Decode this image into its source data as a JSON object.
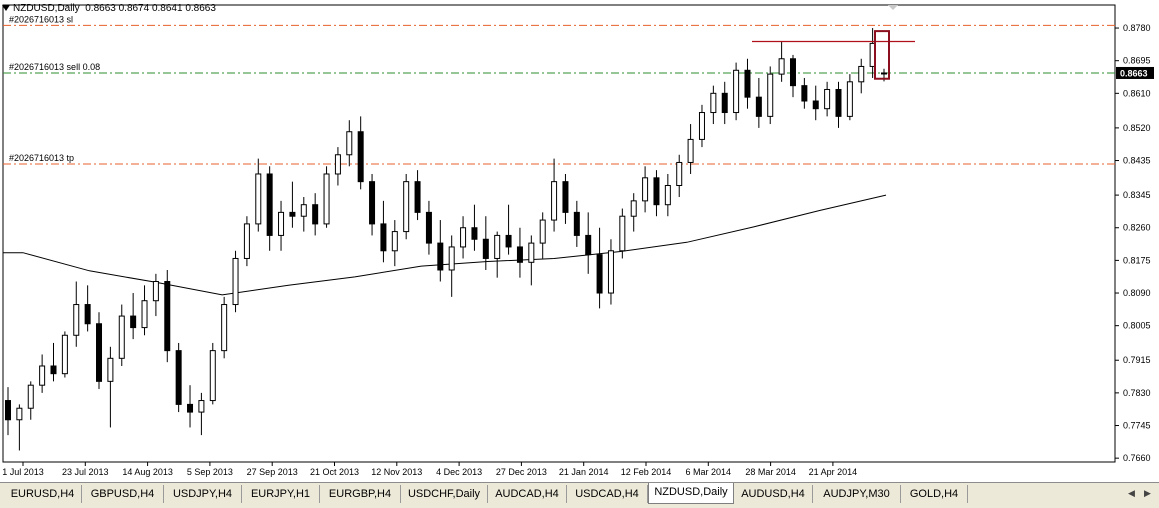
{
  "window": {
    "title": "NZDUSD,Daily",
    "ohlc": "0.8663 0.8674 0.8641 0.8663"
  },
  "chart_data": {
    "type": "candlestick",
    "symbol": "NZDUSD",
    "timeframe": "Daily",
    "ylim": [
      0.765,
      0.884
    ],
    "y_ticks": [
      "0.8780",
      "0.8695",
      "0.8610",
      "0.8520",
      "0.8435",
      "0.8345",
      "0.8260",
      "0.8175",
      "0.8090",
      "0.8005",
      "0.7915",
      "0.7830",
      "0.7745",
      "0.7660"
    ],
    "y_tick_values": [
      0.878,
      0.8695,
      0.861,
      0.852,
      0.8435,
      0.8345,
      0.826,
      0.8175,
      0.809,
      0.8005,
      0.7915,
      0.783,
      0.7745,
      0.766
    ],
    "x_ticks": [
      "1 Jul 2013",
      "23 Jul 2013",
      "14 Aug 2013",
      "5 Sep 2013",
      "27 Sep 2013",
      "21 Oct 2013",
      "12 Nov 2013",
      "4 Dec 2013",
      "27 Dec 2013",
      "21 Jan 2014",
      "12 Feb 2014",
      "6 Mar 2014",
      "28 Mar 2014",
      "21 Apr 2014"
    ],
    "current_price": "0.8663",
    "current_price_value": 0.8663,
    "order_lines": [
      {
        "label": "#2026716013 sl",
        "price": 0.8787,
        "color": "#e8602c"
      },
      {
        "label": "#2026716013 sell 0.08",
        "price": 0.8663,
        "color": "#2e8b2e"
      },
      {
        "label": "#2026716013 tp",
        "price": 0.8426,
        "color": "#e8602c"
      }
    ],
    "resistance_line_price": 0.8745,
    "highlight_box_range": [
      0.8648,
      0.8772
    ],
    "moving_average": [
      {
        "x": "1 Jul 2013",
        "y": 0.8195
      },
      {
        "x": "23 Jul 2013",
        "y": 0.8148
      },
      {
        "x": "14 Aug 2013",
        "y": 0.8118
      },
      {
        "x": "5 Sep 2013",
        "y": 0.8085
      },
      {
        "x": "27 Sep 2013",
        "y": 0.811
      },
      {
        "x": "21 Oct 2013",
        "y": 0.8132
      },
      {
        "x": "12 Nov 2013",
        "y": 0.816
      },
      {
        "x": "4 Dec 2013",
        "y": 0.8172
      },
      {
        "x": "27 Dec 2013",
        "y": 0.818
      },
      {
        "x": "21 Jan 2014",
        "y": 0.8198
      },
      {
        "x": "12 Feb 2014",
        "y": 0.8222
      },
      {
        "x": "6 Mar 2014",
        "y": 0.8262
      },
      {
        "x": "28 Mar 2014",
        "y": 0.8305
      },
      {
        "x": "21 Apr 2014",
        "y": 0.8345
      }
    ],
    "candles": [
      {
        "o": 0.781,
        "h": 0.7845,
        "l": 0.772,
        "c": 0.776
      },
      {
        "o": 0.776,
        "h": 0.78,
        "l": 0.768,
        "c": 0.779
      },
      {
        "o": 0.779,
        "h": 0.786,
        "l": 0.776,
        "c": 0.785
      },
      {
        "o": 0.785,
        "h": 0.793,
        "l": 0.783,
        "c": 0.79
      },
      {
        "o": 0.79,
        "h": 0.796,
        "l": 0.786,
        "c": 0.788
      },
      {
        "o": 0.788,
        "h": 0.799,
        "l": 0.787,
        "c": 0.798
      },
      {
        "o": 0.798,
        "h": 0.812,
        "l": 0.795,
        "c": 0.806
      },
      {
        "o": 0.806,
        "h": 0.811,
        "l": 0.799,
        "c": 0.801
      },
      {
        "o": 0.801,
        "h": 0.804,
        "l": 0.784,
        "c": 0.786
      },
      {
        "o": 0.786,
        "h": 0.795,
        "l": 0.774,
        "c": 0.792
      },
      {
        "o": 0.792,
        "h": 0.806,
        "l": 0.79,
        "c": 0.803
      },
      {
        "o": 0.803,
        "h": 0.809,
        "l": 0.797,
        "c": 0.8
      },
      {
        "o": 0.8,
        "h": 0.811,
        "l": 0.798,
        "c": 0.807
      },
      {
        "o": 0.807,
        "h": 0.814,
        "l": 0.803,
        "c": 0.812
      },
      {
        "o": 0.812,
        "h": 0.815,
        "l": 0.791,
        "c": 0.794
      },
      {
        "o": 0.794,
        "h": 0.796,
        "l": 0.778,
        "c": 0.78
      },
      {
        "o": 0.78,
        "h": 0.785,
        "l": 0.774,
        "c": 0.778
      },
      {
        "o": 0.778,
        "h": 0.783,
        "l": 0.772,
        "c": 0.781
      },
      {
        "o": 0.781,
        "h": 0.796,
        "l": 0.78,
        "c": 0.794
      },
      {
        "o": 0.794,
        "h": 0.808,
        "l": 0.792,
        "c": 0.806
      },
      {
        "o": 0.806,
        "h": 0.82,
        "l": 0.804,
        "c": 0.818
      },
      {
        "o": 0.818,
        "h": 0.829,
        "l": 0.816,
        "c": 0.827
      },
      {
        "o": 0.827,
        "h": 0.844,
        "l": 0.825,
        "c": 0.84
      },
      {
        "o": 0.84,
        "h": 0.842,
        "l": 0.82,
        "c": 0.824
      },
      {
        "o": 0.824,
        "h": 0.833,
        "l": 0.82,
        "c": 0.83
      },
      {
        "o": 0.83,
        "h": 0.838,
        "l": 0.826,
        "c": 0.829
      },
      {
        "o": 0.829,
        "h": 0.834,
        "l": 0.825,
        "c": 0.832
      },
      {
        "o": 0.832,
        "h": 0.835,
        "l": 0.824,
        "c": 0.827
      },
      {
        "o": 0.827,
        "h": 0.842,
        "l": 0.826,
        "c": 0.84
      },
      {
        "o": 0.84,
        "h": 0.847,
        "l": 0.837,
        "c": 0.845
      },
      {
        "o": 0.845,
        "h": 0.854,
        "l": 0.842,
        "c": 0.851
      },
      {
        "o": 0.851,
        "h": 0.855,
        "l": 0.836,
        "c": 0.838
      },
      {
        "o": 0.838,
        "h": 0.84,
        "l": 0.824,
        "c": 0.827
      },
      {
        "o": 0.827,
        "h": 0.833,
        "l": 0.817,
        "c": 0.82
      },
      {
        "o": 0.82,
        "h": 0.828,
        "l": 0.816,
        "c": 0.825
      },
      {
        "o": 0.825,
        "h": 0.84,
        "l": 0.823,
        "c": 0.838
      },
      {
        "o": 0.838,
        "h": 0.841,
        "l": 0.828,
        "c": 0.83
      },
      {
        "o": 0.83,
        "h": 0.833,
        "l": 0.819,
        "c": 0.822
      },
      {
        "o": 0.822,
        "h": 0.828,
        "l": 0.812,
        "c": 0.815
      },
      {
        "o": 0.815,
        "h": 0.824,
        "l": 0.808,
        "c": 0.821
      },
      {
        "o": 0.821,
        "h": 0.829,
        "l": 0.818,
        "c": 0.826
      },
      {
        "o": 0.826,
        "h": 0.832,
        "l": 0.82,
        "c": 0.823
      },
      {
        "o": 0.823,
        "h": 0.829,
        "l": 0.815,
        "c": 0.818
      },
      {
        "o": 0.818,
        "h": 0.825,
        "l": 0.813,
        "c": 0.824
      },
      {
        "o": 0.824,
        "h": 0.832,
        "l": 0.819,
        "c": 0.821
      },
      {
        "o": 0.821,
        "h": 0.826,
        "l": 0.813,
        "c": 0.817
      },
      {
        "o": 0.817,
        "h": 0.824,
        "l": 0.811,
        "c": 0.822
      },
      {
        "o": 0.822,
        "h": 0.83,
        "l": 0.818,
        "c": 0.828
      },
      {
        "o": 0.828,
        "h": 0.844,
        "l": 0.825,
        "c": 0.838
      },
      {
        "o": 0.838,
        "h": 0.84,
        "l": 0.827,
        "c": 0.83
      },
      {
        "o": 0.83,
        "h": 0.833,
        "l": 0.821,
        "c": 0.824
      },
      {
        "o": 0.824,
        "h": 0.83,
        "l": 0.814,
        "c": 0.819
      },
      {
        "o": 0.819,
        "h": 0.826,
        "l": 0.805,
        "c": 0.809
      },
      {
        "o": 0.809,
        "h": 0.823,
        "l": 0.806,
        "c": 0.82
      },
      {
        "o": 0.82,
        "h": 0.831,
        "l": 0.818,
        "c": 0.829
      },
      {
        "o": 0.829,
        "h": 0.835,
        "l": 0.825,
        "c": 0.833
      },
      {
        "o": 0.833,
        "h": 0.842,
        "l": 0.83,
        "c": 0.839
      },
      {
        "o": 0.839,
        "h": 0.841,
        "l": 0.829,
        "c": 0.832
      },
      {
        "o": 0.832,
        "h": 0.84,
        "l": 0.829,
        "c": 0.837
      },
      {
        "o": 0.837,
        "h": 0.845,
        "l": 0.834,
        "c": 0.843
      },
      {
        "o": 0.843,
        "h": 0.853,
        "l": 0.84,
        "c": 0.849
      },
      {
        "o": 0.849,
        "h": 0.858,
        "l": 0.847,
        "c": 0.856
      },
      {
        "o": 0.856,
        "h": 0.863,
        "l": 0.853,
        "c": 0.861
      },
      {
        "o": 0.861,
        "h": 0.864,
        "l": 0.853,
        "c": 0.856
      },
      {
        "o": 0.856,
        "h": 0.869,
        "l": 0.854,
        "c": 0.867
      },
      {
        "o": 0.867,
        "h": 0.87,
        "l": 0.857,
        "c": 0.86
      },
      {
        "o": 0.86,
        "h": 0.865,
        "l": 0.852,
        "c": 0.855
      },
      {
        "o": 0.855,
        "h": 0.868,
        "l": 0.853,
        "c": 0.866
      },
      {
        "o": 0.866,
        "h": 0.8745,
        "l": 0.864,
        "c": 0.87
      },
      {
        "o": 0.87,
        "h": 0.871,
        "l": 0.86,
        "c": 0.863
      },
      {
        "o": 0.863,
        "h": 0.865,
        "l": 0.857,
        "c": 0.859
      },
      {
        "o": 0.859,
        "h": 0.863,
        "l": 0.854,
        "c": 0.857
      },
      {
        "o": 0.857,
        "h": 0.864,
        "l": 0.855,
        "c": 0.862
      },
      {
        "o": 0.862,
        "h": 0.864,
        "l": 0.852,
        "c": 0.855
      },
      {
        "o": 0.855,
        "h": 0.866,
        "l": 0.854,
        "c": 0.864
      },
      {
        "o": 0.864,
        "h": 0.87,
        "l": 0.861,
        "c": 0.868
      },
      {
        "o": 0.868,
        "h": 0.878,
        "l": 0.865,
        "c": 0.874
      },
      {
        "o": 0.8663,
        "h": 0.8674,
        "l": 0.8641,
        "c": 0.8663
      }
    ]
  },
  "tabs": [
    {
      "label": "EURUSD,H4"
    },
    {
      "label": "GBPUSD,H4"
    },
    {
      "label": "USDJPY,H4"
    },
    {
      "label": "EURJPY,H1"
    },
    {
      "label": "EURGBP,H4"
    },
    {
      "label": "USDCHF,Daily"
    },
    {
      "label": "AUDCAD,H4"
    },
    {
      "label": "USDCAD,H4"
    },
    {
      "label": "NZDUSD,Daily"
    },
    {
      "label": "AUDUSD,H4"
    },
    {
      "label": "AUDJPY,M30"
    },
    {
      "label": "GOLD,H4"
    }
  ],
  "active_tab": 8,
  "icons": {
    "title_menu": "dropdown-triangle-icon",
    "scroll_left": "arrow-left-icon",
    "scroll_right": "arrow-right-icon"
  }
}
